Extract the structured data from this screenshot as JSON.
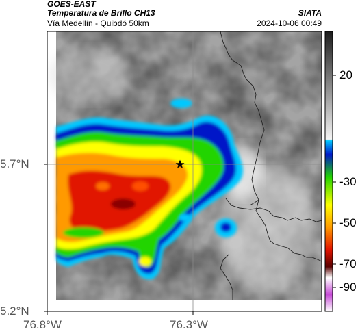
{
  "header": {
    "satellite": "GOES-EAST",
    "product": "Temperatura de Brillo CH13",
    "region": "Vía Medellín - Quibdó 50km",
    "organization": "SIATA",
    "datetime": "2024-10-06 00:49"
  },
  "map": {
    "lat_ticks": [
      "5.7°N",
      "5.2°N"
    ],
    "lon_ticks": [
      "76.8°W",
      "76.3°W"
    ],
    "marker": "star-marker",
    "gridlines": true
  },
  "colorbar": {
    "labels": [
      "20",
      "-30",
      "-50",
      "-70",
      "-90"
    ],
    "colors": {
      "gray_dark": "#222222",
      "gray_light": "#e6e6e6",
      "cyan": "#00c8ff",
      "blue": "#0018c8",
      "green": "#22d400",
      "yellow": "#ffff00",
      "orange": "#ff9a00",
      "red": "#e11400",
      "dark_red": "#5a0000",
      "magenta": "#c64ad6"
    }
  }
}
